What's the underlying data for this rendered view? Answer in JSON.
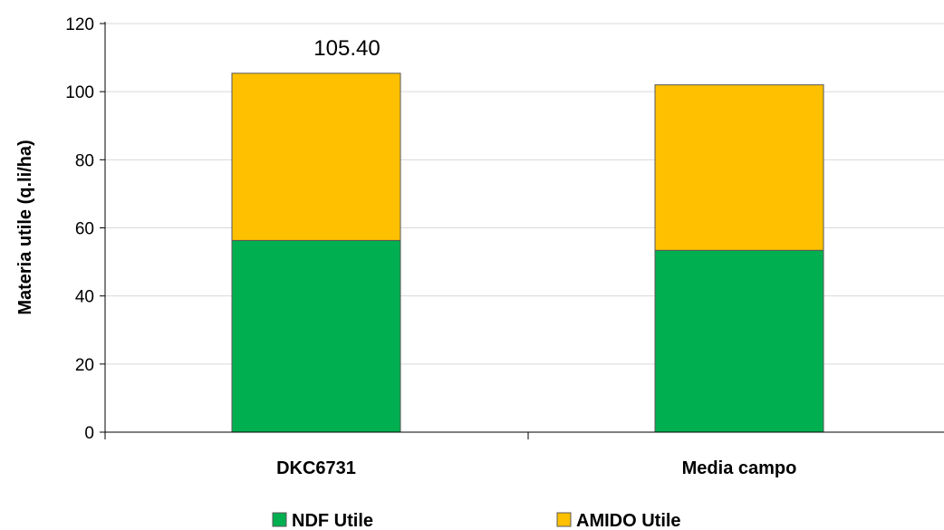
{
  "chart_data": {
    "type": "bar",
    "stacked": true,
    "categories": [
      "DKC6731",
      "Media campo"
    ],
    "series": [
      {
        "name": "NDF Utile",
        "values": [
          56.3,
          53.4
        ],
        "color": "#00B050"
      },
      {
        "name": "AMIDO Utile",
        "values": [
          49.1,
          48.6
        ],
        "color": "#FFC000"
      }
    ],
    "data_labels": [
      {
        "category": "DKC6731",
        "text": "105.40"
      }
    ],
    "ylabel": "Materia utile (q.li/ha)",
    "xlabel": "",
    "title": "",
    "ylim": [
      0,
      120
    ],
    "yticks": [
      0,
      20,
      40,
      60,
      80,
      100,
      120
    ],
    "grid": true,
    "legend_position": "bottom"
  }
}
